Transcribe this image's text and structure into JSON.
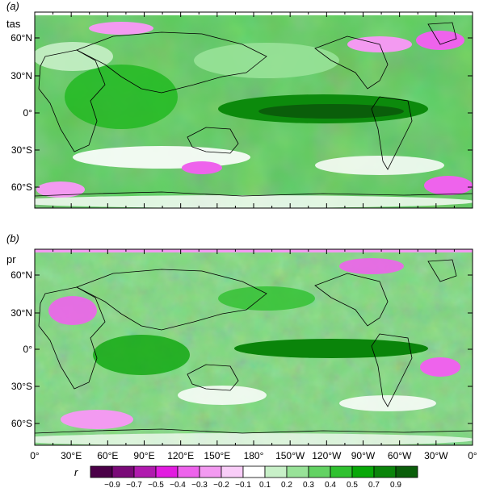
{
  "panels": [
    {
      "letter": "(a)",
      "variable": "tas"
    },
    {
      "letter": "(b)",
      "variable": "pr"
    }
  ],
  "lat_ticks": [
    "60°N",
    "30°N",
    "0°",
    "30°S",
    "60°S"
  ],
  "lon_ticks": [
    "0°",
    "30°E",
    "60°E",
    "90°E",
    "120°E",
    "150°E",
    "180°",
    "150°W",
    "120°W",
    "90°W",
    "60°W",
    "30°W",
    "0°"
  ],
  "colorbar": {
    "label": "r",
    "tick_labels": [
      "−0.9",
      "−0.7",
      "−0.5",
      "−0.4",
      "−0.3",
      "−0.2",
      "−0.1",
      "0.1",
      "0.2",
      "0.3",
      "0.4",
      "0.5",
      "0.7",
      "0.9"
    ],
    "colors": [
      "#4b0048",
      "#7a0a78",
      "#b01aae",
      "#e21ce0",
      "#ee63ec",
      "#f39af1",
      "#f9cdf8",
      "#ffffff",
      "#c8f0c8",
      "#98e298",
      "#63d263",
      "#2fc12f",
      "#08a808",
      "#0a840a",
      "#0a5e0a"
    ]
  }
}
